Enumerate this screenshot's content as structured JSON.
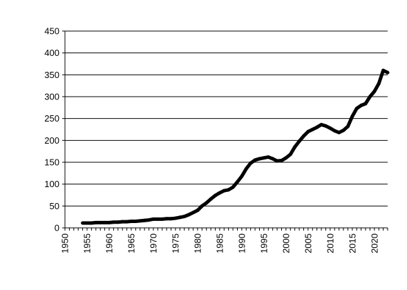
{
  "chart_data": {
    "type": "line",
    "title": "",
    "xlabel": "",
    "ylabel": "",
    "xlim": [
      1950,
      2023
    ],
    "ylim": [
      0,
      450
    ],
    "x_ticks": [
      "1950",
      "1955",
      "1960",
      "1965",
      "1970",
      "1975",
      "1980",
      "1985",
      "1990",
      "1995",
      "2000",
      "2005",
      "2010",
      "2015",
      "2020"
    ],
    "y_ticks": [
      "0",
      "50",
      "100",
      "150",
      "200",
      "250",
      "300",
      "350",
      "400",
      "450"
    ],
    "grid": "horizontal",
    "legend": "none",
    "series": [
      {
        "color": "#000000",
        "x": [
          1954,
          1955,
          1956,
          1957,
          1958,
          1959,
          1960,
          1961,
          1962,
          1963,
          1964,
          1965,
          1966,
          1967,
          1968,
          1969,
          1970,
          1971,
          1972,
          1973,
          1974,
          1975,
          1976,
          1977,
          1978,
          1979,
          1980,
          1981,
          1982,
          1983,
          1984,
          1985,
          1986,
          1987,
          1988,
          1989,
          1990,
          1991,
          1992,
          1993,
          1994,
          1995,
          1996,
          1997,
          1998,
          1999,
          2000,
          2001,
          2002,
          2003,
          2004,
          2005,
          2006,
          2007,
          2008,
          2009,
          2010,
          2011,
          2012,
          2013,
          2014,
          2015,
          2016,
          2017,
          2018,
          2019,
          2020,
          2021,
          2022,
          2023
        ],
        "values": [
          11,
          11,
          11,
          12,
          12,
          12,
          12,
          13,
          13,
          14,
          14,
          15,
          15,
          16,
          17,
          18,
          20,
          20,
          20,
          21,
          21,
          22,
          24,
          26,
          30,
          35,
          40,
          50,
          57,
          66,
          74,
          80,
          85,
          87,
          93,
          105,
          118,
          135,
          148,
          155,
          158,
          160,
          162,
          158,
          153,
          154,
          160,
          168,
          185,
          198,
          210,
          220,
          225,
          230,
          236,
          233,
          228,
          222,
          218,
          223,
          232,
          255,
          273,
          280,
          284,
          300,
          312,
          330,
          360,
          355
        ]
      }
    ]
  }
}
